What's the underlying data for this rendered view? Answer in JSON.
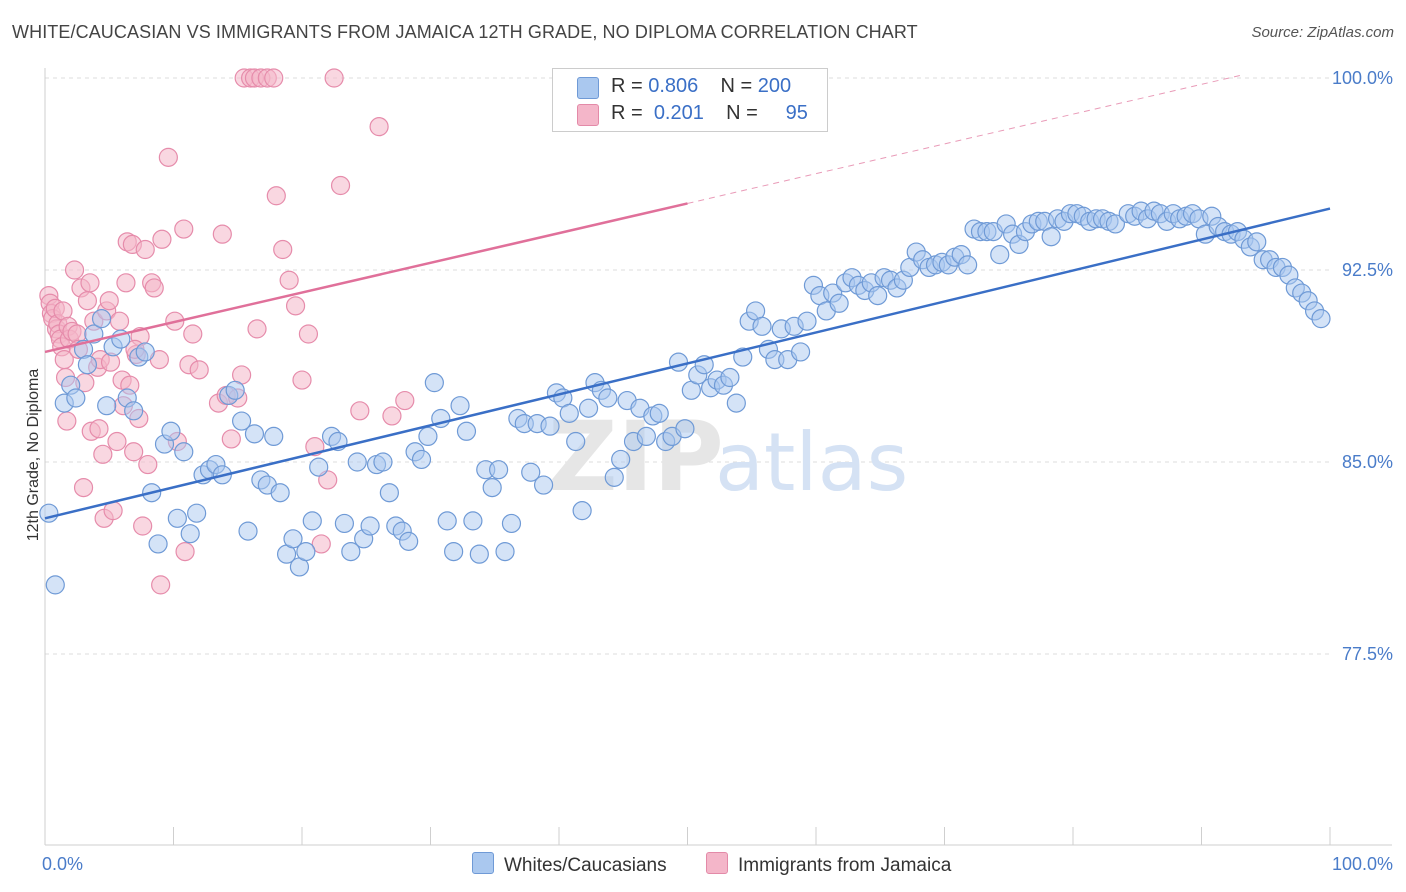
{
  "title": "WHITE/CAUCASIAN VS IMMIGRANTS FROM JAMAICA 12TH GRADE, NO DIPLOMA CORRELATION CHART",
  "source": "Source: ZipAtlas.com",
  "watermark": {
    "zip": "ZIP",
    "atlas": "atlas"
  },
  "colors": {
    "blue": "#3a6fc6",
    "blue_fill": "#aac8ef",
    "pink": "#e0709a",
    "pink_fill": "#f4b6c9",
    "grid": "#dddddd",
    "axis_text": "#4a7cc9"
  },
  "legend": {
    "rows": [
      {
        "r_label": "R = ",
        "r_value": "0.806",
        "n_label": "N = ",
        "n_value": "200"
      },
      {
        "r_label": "R = ",
        "r_value": "0.201",
        "n_label": "N = ",
        "n_value": "95"
      }
    ]
  },
  "bottom_legend": [
    "Whites/Caucasians",
    "Immigrants from Jamaica"
  ],
  "chart_data": {
    "type": "scatter",
    "xlabel": "",
    "ylabel": "12th Grade, No Diploma",
    "xlim": [
      0,
      100
    ],
    "ylim": [
      70,
      100.8
    ],
    "x_tick_labels": [
      {
        "value": 0,
        "label": "0.0%"
      },
      {
        "value": 100,
        "label": "100.0%"
      }
    ],
    "y_tick_labels": [
      {
        "value": 100,
        "label": "100.0%"
      },
      {
        "value": 92.5,
        "label": "92.5%"
      },
      {
        "value": 85,
        "label": "85.0%"
      },
      {
        "value": 77.5,
        "label": "77.5%"
      }
    ],
    "grid": true,
    "series": [
      {
        "name": "Whites/Caucasians",
        "trend": {
          "x": [
            0,
            100
          ],
          "y": [
            82.8,
            94.9
          ]
        },
        "points": [
          [
            0.3,
            83.0
          ],
          [
            0.8,
            80.2
          ],
          [
            1.5,
            87.3
          ],
          [
            2,
            88
          ],
          [
            2.4,
            87.5
          ],
          [
            3,
            89.4
          ],
          [
            3.3,
            88.8
          ],
          [
            3.8,
            90.0
          ],
          [
            4.4,
            90.6
          ],
          [
            4.8,
            87.2
          ],
          [
            5.3,
            89.5
          ],
          [
            5.9,
            89.8
          ],
          [
            6.4,
            87.5
          ],
          [
            6.9,
            87.0
          ],
          [
            7.3,
            89.1
          ],
          [
            7.8,
            89.3
          ],
          [
            8.3,
            83.8
          ],
          [
            8.8,
            81.8
          ],
          [
            9.3,
            85.7
          ],
          [
            9.8,
            86.2
          ],
          [
            10.3,
            82.8
          ],
          [
            10.8,
            85.4
          ],
          [
            11.3,
            82.2
          ],
          [
            11.8,
            83.0
          ],
          [
            12.3,
            84.5
          ],
          [
            12.8,
            84.7
          ],
          [
            13.3,
            84.9
          ],
          [
            13.8,
            84.5
          ],
          [
            14.3,
            87.6
          ],
          [
            14.8,
            87.8
          ],
          [
            15.3,
            86.6
          ],
          [
            15.8,
            82.3
          ],
          [
            16.3,
            86.1
          ],
          [
            16.8,
            84.3
          ],
          [
            17.3,
            84.1
          ],
          [
            17.8,
            86.0
          ],
          [
            18.3,
            83.8
          ],
          [
            18.8,
            81.4
          ],
          [
            19.3,
            82.0
          ],
          [
            19.8,
            80.9
          ],
          [
            20.3,
            81.5
          ],
          [
            20.8,
            82.7
          ],
          [
            21.3,
            84.8
          ],
          [
            22.3,
            86.0
          ],
          [
            22.8,
            85.8
          ],
          [
            23.3,
            82.6
          ],
          [
            23.8,
            81.5
          ],
          [
            24.3,
            85.0
          ],
          [
            24.8,
            82.0
          ],
          [
            25.3,
            82.5
          ],
          [
            25.8,
            84.9
          ],
          [
            26.3,
            85.0
          ],
          [
            26.8,
            83.8
          ],
          [
            27.3,
            82.5
          ],
          [
            27.8,
            82.3
          ],
          [
            28.3,
            81.9
          ],
          [
            28.8,
            85.4
          ],
          [
            29.3,
            85.1
          ],
          [
            29.8,
            86.0
          ],
          [
            30.3,
            88.1
          ],
          [
            30.8,
            86.7
          ],
          [
            31.3,
            82.7
          ],
          [
            31.8,
            81.5
          ],
          [
            32.3,
            87.2
          ],
          [
            32.8,
            86.2
          ],
          [
            33.3,
            82.7
          ],
          [
            33.8,
            81.4
          ],
          [
            34.3,
            84.7
          ],
          [
            34.8,
            84.0
          ],
          [
            35.3,
            84.7
          ],
          [
            35.8,
            81.5
          ],
          [
            36.3,
            82.6
          ],
          [
            36.8,
            86.7
          ],
          [
            37.3,
            86.5
          ],
          [
            37.8,
            84.6
          ],
          [
            38.3,
            86.5
          ],
          [
            38.8,
            84.1
          ],
          [
            39.3,
            86.4
          ],
          [
            39.8,
            87.7
          ],
          [
            40.3,
            87.5
          ],
          [
            40.8,
            86.9
          ],
          [
            41.3,
            85.8
          ],
          [
            41.8,
            83.1
          ],
          [
            42.3,
            87.1
          ],
          [
            42.8,
            88.1
          ],
          [
            43.3,
            87.8
          ],
          [
            43.8,
            87.5
          ],
          [
            44.3,
            84.4
          ],
          [
            44.8,
            85.1
          ],
          [
            45.3,
            87.4
          ],
          [
            45.8,
            85.8
          ],
          [
            46.3,
            87.1
          ],
          [
            46.8,
            86.0
          ],
          [
            47.3,
            86.8
          ],
          [
            47.8,
            86.9
          ],
          [
            48.3,
            85.8
          ],
          [
            48.8,
            86.0
          ],
          [
            49.3,
            88.9
          ],
          [
            49.8,
            86.3
          ],
          [
            50.3,
            87.8
          ],
          [
            50.8,
            88.4
          ],
          [
            51.3,
            88.8
          ],
          [
            51.8,
            87.9
          ],
          [
            52.3,
            88.2
          ],
          [
            52.8,
            88.0
          ],
          [
            53.3,
            88.3
          ],
          [
            53.8,
            87.3
          ],
          [
            54.3,
            89.1
          ],
          [
            54.8,
            90.5
          ],
          [
            55.3,
            90.9
          ],
          [
            55.8,
            90.3
          ],
          [
            56.3,
            89.4
          ],
          [
            56.8,
            89.0
          ],
          [
            57.3,
            90.2
          ],
          [
            57.8,
            89.0
          ],
          [
            58.3,
            90.3
          ],
          [
            58.8,
            89.3
          ],
          [
            59.3,
            90.5
          ],
          [
            59.8,
            91.9
          ],
          [
            60.3,
            91.5
          ],
          [
            60.8,
            90.9
          ],
          [
            61.3,
            91.6
          ],
          [
            61.8,
            91.2
          ],
          [
            62.3,
            92.0
          ],
          [
            62.8,
            92.2
          ],
          [
            63.3,
            91.9
          ],
          [
            63.8,
            91.7
          ],
          [
            64.3,
            92.0
          ],
          [
            64.8,
            91.5
          ],
          [
            65.3,
            92.2
          ],
          [
            65.8,
            92.1
          ],
          [
            66.3,
            91.8
          ],
          [
            66.8,
            92.1
          ],
          [
            67.3,
            92.6
          ],
          [
            67.8,
            93.2
          ],
          [
            68.3,
            92.9
          ],
          [
            68.8,
            92.6
          ],
          [
            69.3,
            92.7
          ],
          [
            69.8,
            92.8
          ],
          [
            70.3,
            92.7
          ],
          [
            70.8,
            93.0
          ],
          [
            71.3,
            93.1
          ],
          [
            71.8,
            92.7
          ],
          [
            72.3,
            94.1
          ],
          [
            72.8,
            94.0
          ],
          [
            73.3,
            94.0
          ],
          [
            73.8,
            94.0
          ],
          [
            74.3,
            93.1
          ],
          [
            74.8,
            94.3
          ],
          [
            75.3,
            93.9
          ],
          [
            75.8,
            93.5
          ],
          [
            76.3,
            94.0
          ],
          [
            76.8,
            94.3
          ],
          [
            77.3,
            94.4
          ],
          [
            77.8,
            94.4
          ],
          [
            78.3,
            93.8
          ],
          [
            78.8,
            94.5
          ],
          [
            79.3,
            94.4
          ],
          [
            79.8,
            94.7
          ],
          [
            80.3,
            94.7
          ],
          [
            80.8,
            94.6
          ],
          [
            81.3,
            94.4
          ],
          [
            81.8,
            94.5
          ],
          [
            82.3,
            94.5
          ],
          [
            82.8,
            94.4
          ],
          [
            83.3,
            94.3
          ],
          [
            84.3,
            94.7
          ],
          [
            84.8,
            94.6
          ],
          [
            85.3,
            94.8
          ],
          [
            85.8,
            94.5
          ],
          [
            86.3,
            94.8
          ],
          [
            86.8,
            94.7
          ],
          [
            87.3,
            94.4
          ],
          [
            87.8,
            94.7
          ],
          [
            88.3,
            94.5
          ],
          [
            88.8,
            94.6
          ],
          [
            89.3,
            94.7
          ],
          [
            89.8,
            94.5
          ],
          [
            90.3,
            93.9
          ],
          [
            90.8,
            94.6
          ],
          [
            91.3,
            94.2
          ],
          [
            91.8,
            94.0
          ],
          [
            92.3,
            93.9
          ],
          [
            92.8,
            94.0
          ],
          [
            93.3,
            93.7
          ],
          [
            93.8,
            93.4
          ],
          [
            94.3,
            93.6
          ],
          [
            94.8,
            92.9
          ],
          [
            95.3,
            92.9
          ],
          [
            95.8,
            92.6
          ],
          [
            96.3,
            92.6
          ],
          [
            96.8,
            92.3
          ],
          [
            97.3,
            91.8
          ],
          [
            97.8,
            91.6
          ],
          [
            98.3,
            91.3
          ],
          [
            98.8,
            90.9
          ],
          [
            99.3,
            90.6
          ]
        ]
      },
      {
        "name": "Immigrants from Jamaica",
        "trend": {
          "x": [
            0,
            50
          ],
          "y": [
            89.3,
            95.1
          ]
        },
        "trend_dashed": {
          "x": [
            50,
            93
          ],
          "y": [
            95.1,
            100.1
          ]
        },
        "points": [
          [
            0.3,
            91.5
          ],
          [
            0.4,
            91.2
          ],
          [
            0.5,
            90.8
          ],
          [
            0.6,
            90.6
          ],
          [
            0.8,
            91.0
          ],
          [
            0.9,
            90.2
          ],
          [
            1,
            90.4
          ],
          [
            1.1,
            90.0
          ],
          [
            1.2,
            89.8
          ],
          [
            1.3,
            89.5
          ],
          [
            1.4,
            90.9
          ],
          [
            1.5,
            89.0
          ],
          [
            1.6,
            88.3
          ],
          [
            1.7,
            86.6
          ],
          [
            1.8,
            90.3
          ],
          [
            1.9,
            89.8
          ],
          [
            2.1,
            90.1
          ],
          [
            2.3,
            92.5
          ],
          [
            2.5,
            90.0
          ],
          [
            2.8,
            91.8
          ],
          [
            3.1,
            88.1
          ],
          [
            3.3,
            91.3
          ],
          [
            3.5,
            92.0
          ],
          [
            3.6,
            86.2
          ],
          [
            3.8,
            90.5
          ],
          [
            4.1,
            88.7
          ],
          [
            4.3,
            89.0
          ],
          [
            4.5,
            85.3
          ],
          [
            4.6,
            82.8
          ],
          [
            4.8,
            90.9
          ],
          [
            5.1,
            88.9
          ],
          [
            5.3,
            83.1
          ],
          [
            5.6,
            85.8
          ],
          [
            5.8,
            90.5
          ],
          [
            6,
            88.2
          ],
          [
            6.1,
            87.2
          ],
          [
            6.3,
            92.0
          ],
          [
            6.4,
            93.6
          ],
          [
            6.6,
            88.0
          ],
          [
            6.8,
            93.5
          ],
          [
            6.9,
            85.4
          ],
          [
            7.1,
            89.2
          ],
          [
            7.3,
            86.7
          ],
          [
            7.4,
            89.9
          ],
          [
            7.6,
            82.5
          ],
          [
            7.8,
            93.3
          ],
          [
            8.3,
            92.0
          ],
          [
            8.5,
            91.8
          ],
          [
            8.9,
            89.0
          ],
          [
            9.1,
            93.7
          ],
          [
            9.6,
            96.9
          ],
          [
            10.1,
            90.5
          ],
          [
            10.3,
            85.8
          ],
          [
            10.8,
            94.1
          ],
          [
            10.9,
            81.5
          ],
          [
            11.2,
            88.8
          ],
          [
            11.5,
            90.0
          ],
          [
            13.5,
            87.3
          ],
          [
            13.8,
            93.9
          ],
          [
            14.1,
            87.6
          ],
          [
            14.5,
            85.9
          ],
          [
            15,
            87.5
          ],
          [
            15.3,
            88.4
          ],
          [
            15.5,
            100
          ],
          [
            16,
            100
          ],
          [
            16.3,
            100
          ],
          [
            16.8,
            100
          ],
          [
            17.3,
            100
          ],
          [
            17.8,
            100
          ],
          [
            18,
            95.4
          ],
          [
            18.5,
            93.3
          ],
          [
            19,
            92.1
          ],
          [
            19.5,
            91.1
          ],
          [
            20,
            88.2
          ],
          [
            20.5,
            90.0
          ],
          [
            21,
            85.6
          ],
          [
            21.5,
            81.8
          ],
          [
            22,
            84.3
          ],
          [
            22.5,
            100
          ],
          [
            23,
            95.8
          ],
          [
            24.5,
            87.0
          ],
          [
            26,
            98.1
          ],
          [
            27,
            86.8
          ],
          [
            28,
            87.4
          ],
          [
            4.2,
            86.3
          ],
          [
            2.6,
            89.4
          ],
          [
            3,
            84.0
          ],
          [
            5,
            91.3
          ],
          [
            7,
            89.4
          ],
          [
            8,
            84.9
          ],
          [
            9,
            80.2
          ],
          [
            12,
            88.6
          ],
          [
            16.5,
            90.2
          ]
        ]
      }
    ]
  }
}
